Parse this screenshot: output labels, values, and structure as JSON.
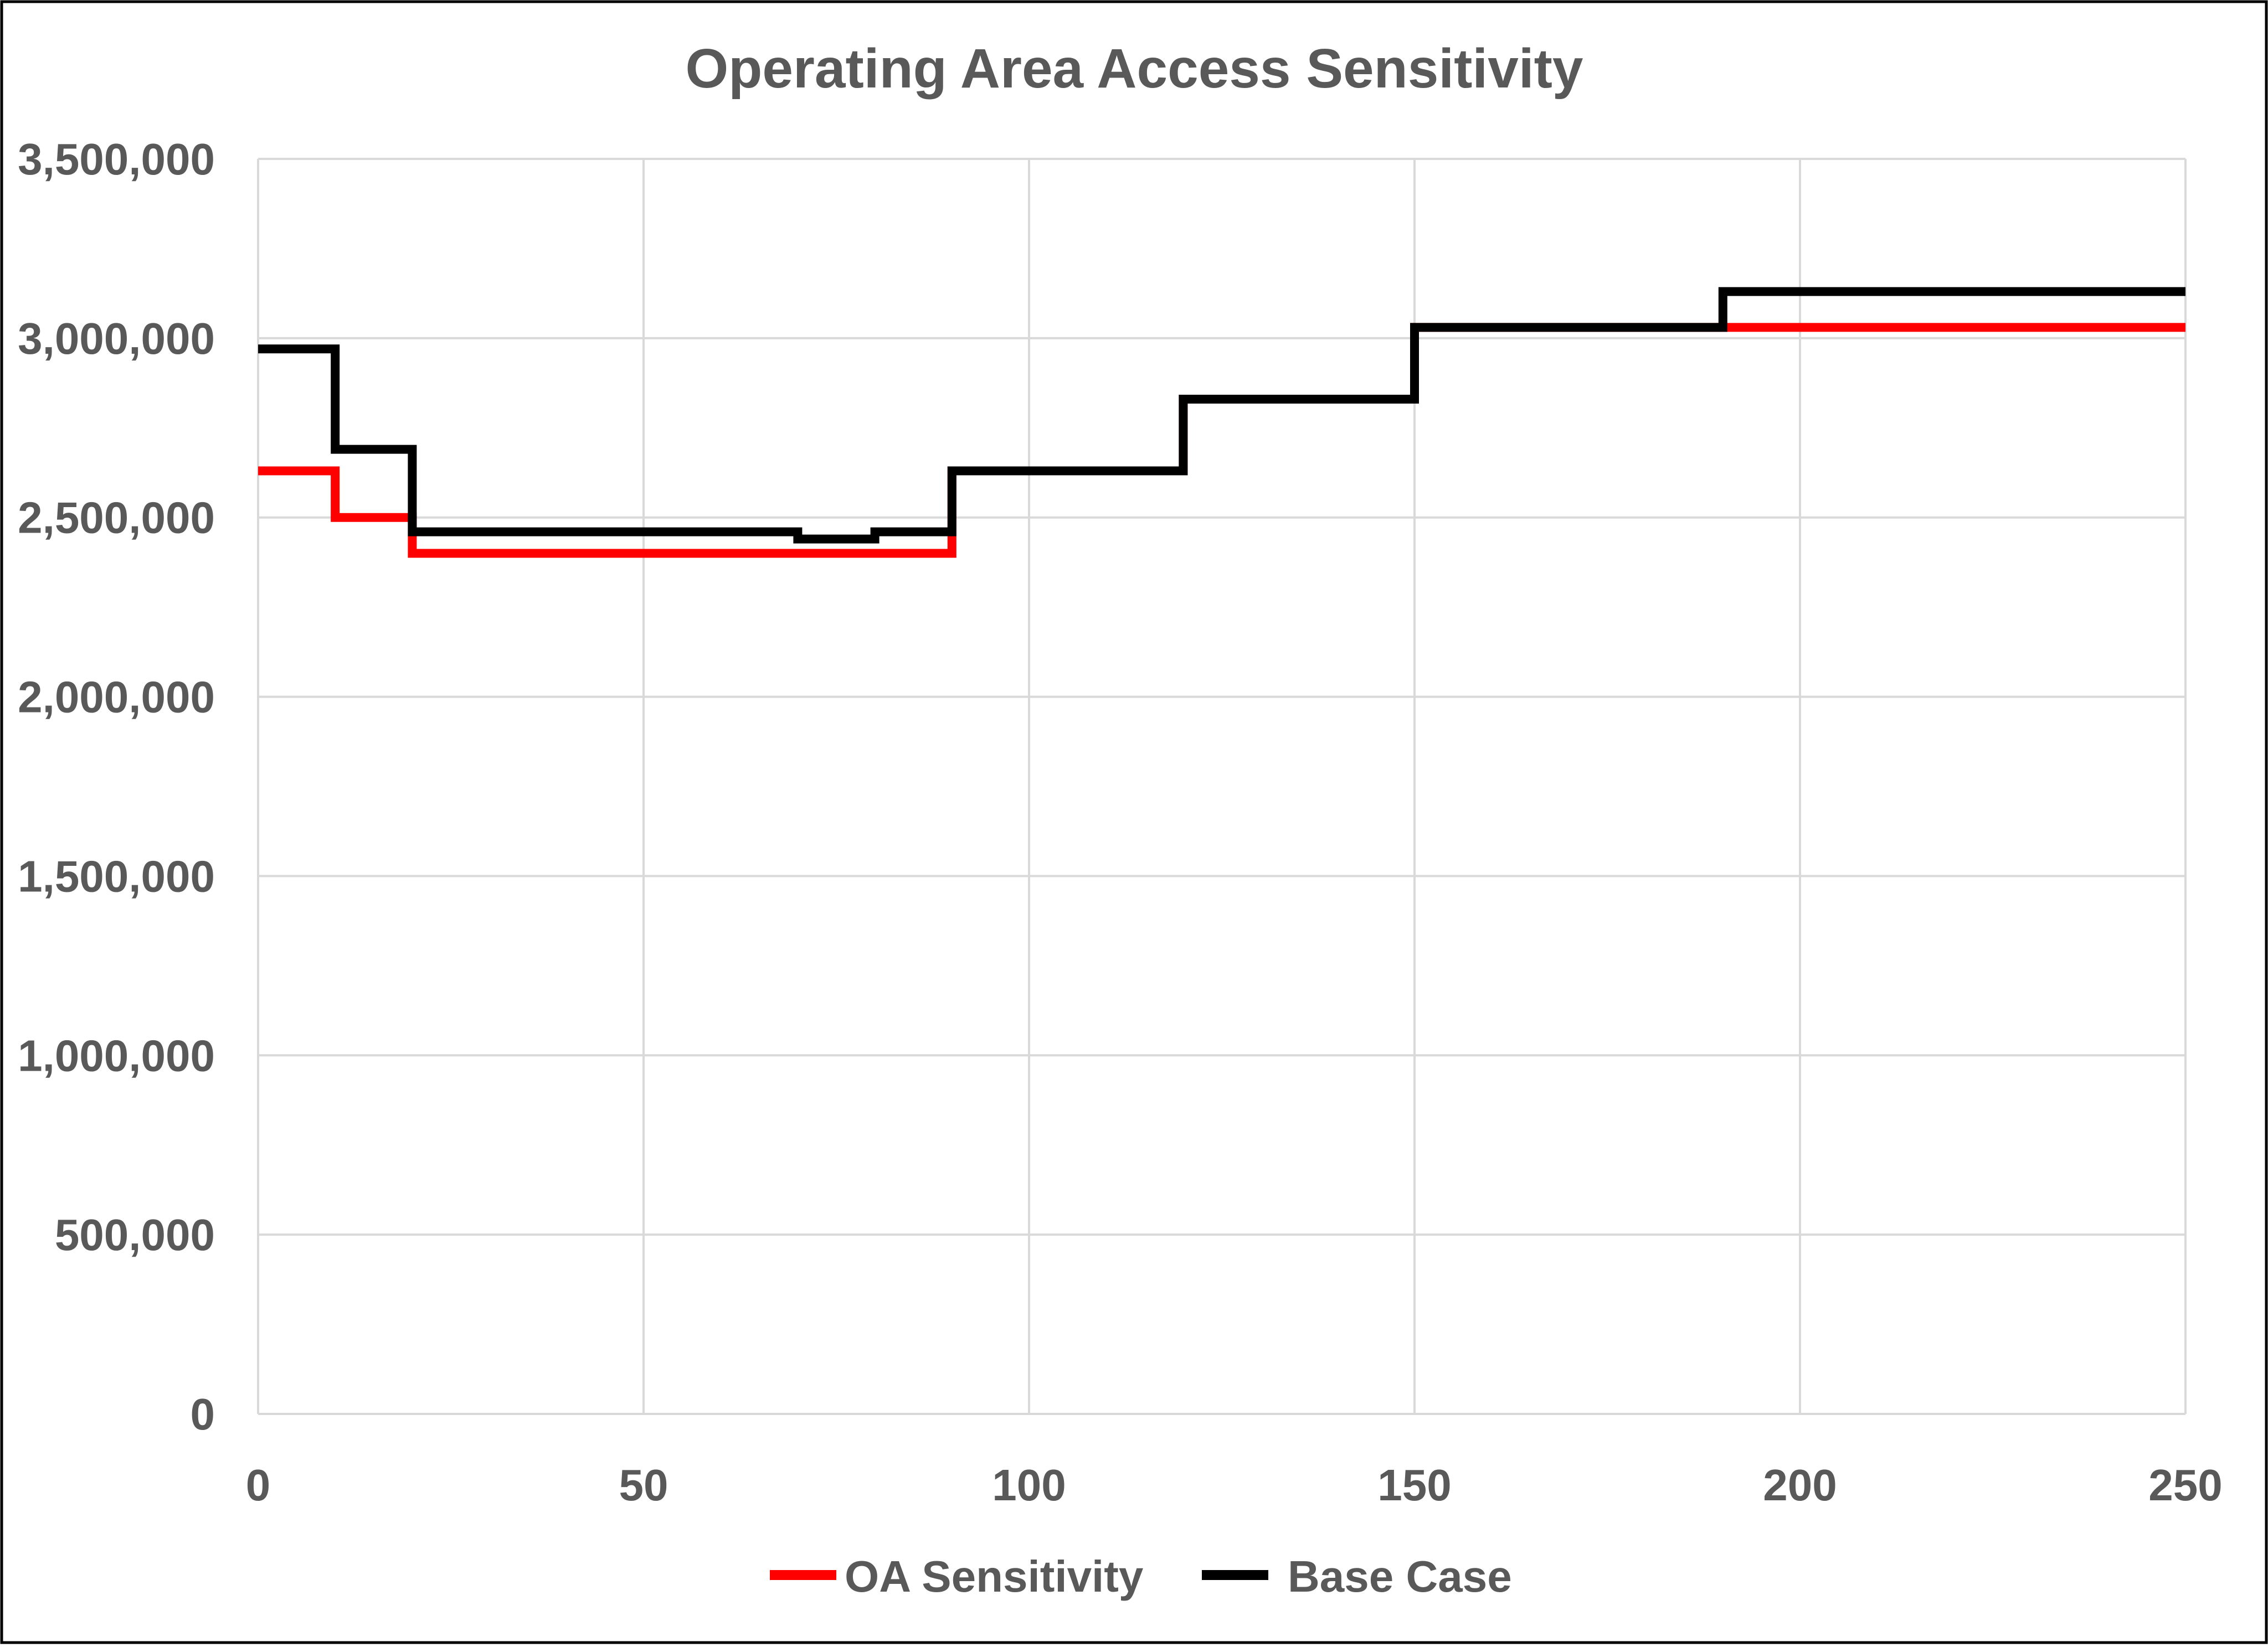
{
  "chart_data": {
    "type": "line",
    "title": "Operating Area Access Sensitivity",
    "xlabel": "",
    "ylabel": "",
    "xlim": [
      0,
      250
    ],
    "ylim": [
      0,
      3500000
    ],
    "x_ticks": [
      0,
      50,
      100,
      150,
      200,
      250
    ],
    "y_ticks": [
      0,
      500000,
      1000000,
      1500000,
      2000000,
      2500000,
      3000000,
      3500000
    ],
    "x_tick_labels": [
      "0",
      "50",
      "100",
      "150",
      "200",
      "250"
    ],
    "y_tick_labels": [
      "0",
      "500,000",
      "1,000,000",
      "1,500,000",
      "2,000,000",
      "2,500,000",
      "3,000,000",
      "3,500,000"
    ],
    "grid": true,
    "legend_position": "bottom",
    "step": true,
    "series": [
      {
        "name": "OA Sensitivity",
        "color": "#ff0000",
        "x": [
          0,
          10,
          20,
          90,
          120,
          150,
          190,
          250
        ],
        "y": [
          2630000,
          2500000,
          2400000,
          2630000,
          2830000,
          3030000,
          3030000,
          3030000
        ]
      },
      {
        "name": "Base Case",
        "color": "#000000",
        "x": [
          0,
          10,
          20,
          70,
          80,
          90,
          120,
          150,
          190,
          250
        ],
        "y": [
          2970000,
          2690000,
          2460000,
          2440000,
          2460000,
          2630000,
          2830000,
          3030000,
          3130000,
          3130000
        ]
      }
    ]
  }
}
